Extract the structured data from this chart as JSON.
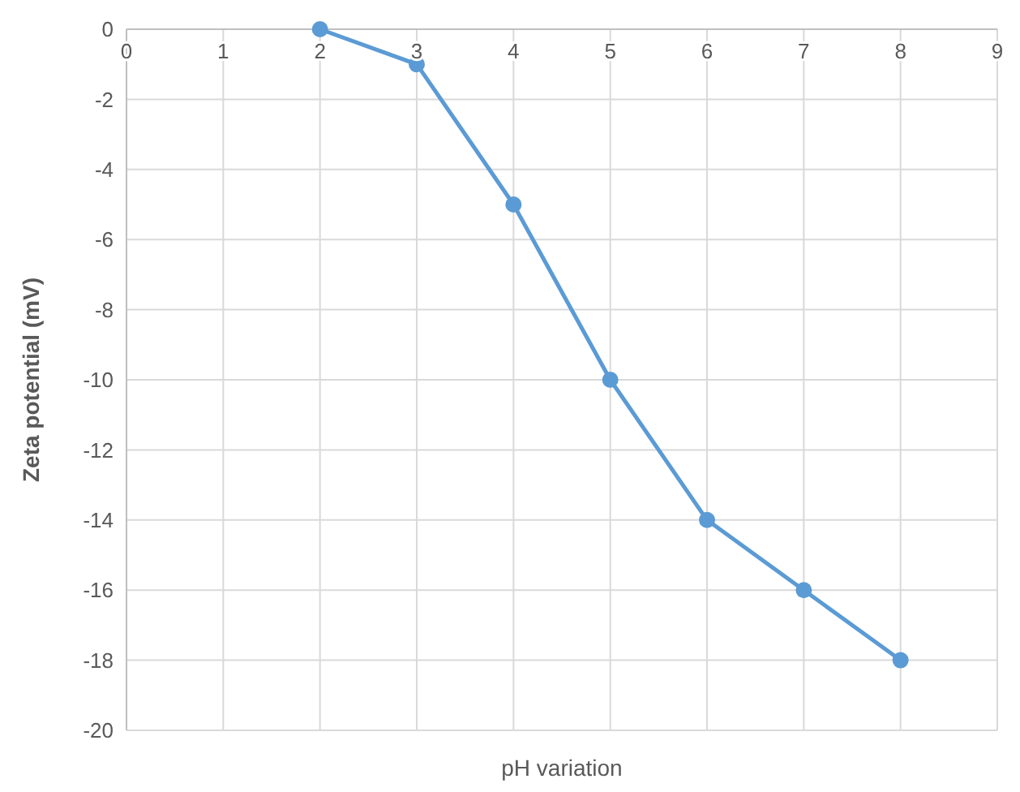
{
  "chart_data": {
    "type": "line",
    "xlabel": "pH variation",
    "ylabel": "Zeta potential (mV)",
    "x": [
      2,
      3,
      4,
      5,
      6,
      7,
      8
    ],
    "series": [
      {
        "color": "#5b9bd5",
        "values": [
          0,
          -1,
          -5,
          -10,
          -14,
          -16,
          -18
        ]
      }
    ],
    "xlim": [
      0,
      9
    ],
    "xticks": [
      0,
      1,
      2,
      3,
      4,
      5,
      6,
      7,
      8,
      9
    ],
    "ylim": [
      -20,
      0
    ],
    "yticks": [
      0,
      -2,
      -4,
      -6,
      -8,
      -10,
      -12,
      -14,
      -16,
      -18,
      -20
    ],
    "grid": true,
    "marker": "circle",
    "line_style": "solid"
  }
}
